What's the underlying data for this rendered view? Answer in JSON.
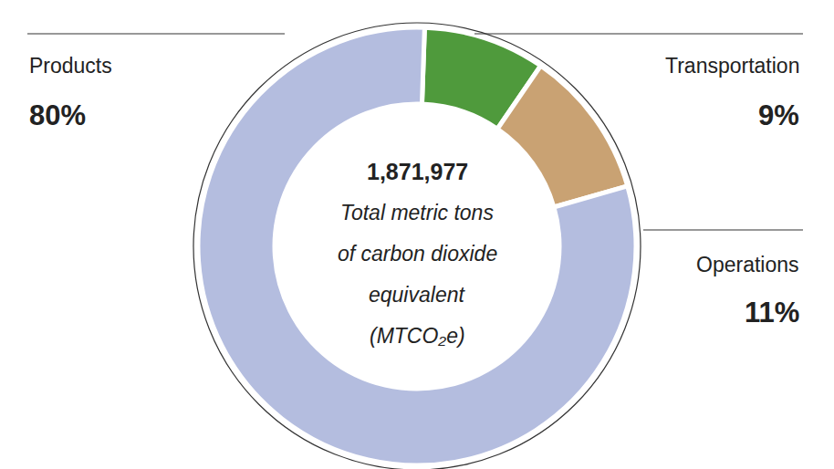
{
  "chart_data": {
    "type": "pie",
    "categories": [
      "Transportation",
      "Operations",
      "Products"
    ],
    "values": [
      9,
      11,
      80
    ],
    "value_labels": [
      "9%",
      "11%",
      "80%"
    ],
    "colors": [
      "#4f9a3c",
      "#c9a273",
      "#b4bddf"
    ],
    "data_labels": true,
    "legend": false,
    "center_label": "1,871,977",
    "center_text": [
      "Total metric tons",
      "of carbon dioxide",
      "equivalent",
      "(MTCO₂e)"
    ]
  }
}
